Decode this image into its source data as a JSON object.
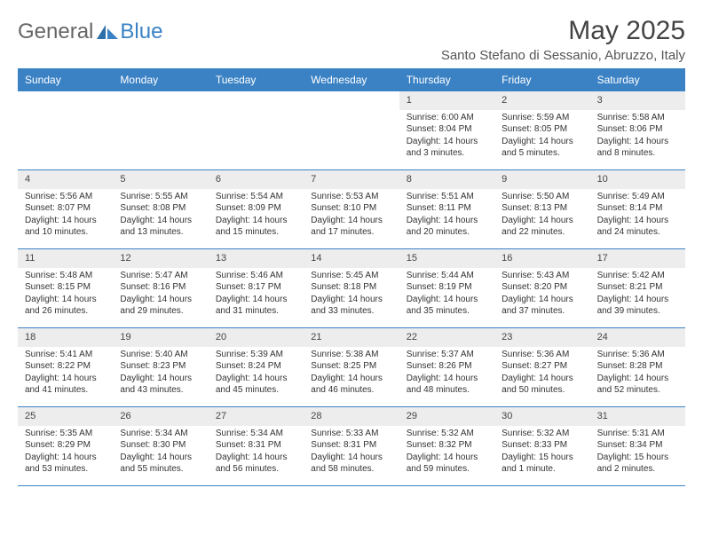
{
  "logo": {
    "text1": "General",
    "text2": "Blue"
  },
  "month_title": "May 2025",
  "location": "Santo Stefano di Sessanio, Abruzzo, Italy",
  "day_names": [
    "Sunday",
    "Monday",
    "Tuesday",
    "Wednesday",
    "Thursday",
    "Friday",
    "Saturday"
  ],
  "colors": {
    "header_bg": "#3b82c4",
    "header_fg": "#ffffff",
    "daynum_bg": "#ededed",
    "week_border": "#3b82c4",
    "text": "#333333"
  },
  "weeks": [
    [
      {
        "n": "",
        "sunrise": "",
        "sunset": "",
        "daylight": ""
      },
      {
        "n": "",
        "sunrise": "",
        "sunset": "",
        "daylight": ""
      },
      {
        "n": "",
        "sunrise": "",
        "sunset": "",
        "daylight": ""
      },
      {
        "n": "",
        "sunrise": "",
        "sunset": "",
        "daylight": ""
      },
      {
        "n": "1",
        "sunrise": "Sunrise: 6:00 AM",
        "sunset": "Sunset: 8:04 PM",
        "daylight": "Daylight: 14 hours and 3 minutes."
      },
      {
        "n": "2",
        "sunrise": "Sunrise: 5:59 AM",
        "sunset": "Sunset: 8:05 PM",
        "daylight": "Daylight: 14 hours and 5 minutes."
      },
      {
        "n": "3",
        "sunrise": "Sunrise: 5:58 AM",
        "sunset": "Sunset: 8:06 PM",
        "daylight": "Daylight: 14 hours and 8 minutes."
      }
    ],
    [
      {
        "n": "4",
        "sunrise": "Sunrise: 5:56 AM",
        "sunset": "Sunset: 8:07 PM",
        "daylight": "Daylight: 14 hours and 10 minutes."
      },
      {
        "n": "5",
        "sunrise": "Sunrise: 5:55 AM",
        "sunset": "Sunset: 8:08 PM",
        "daylight": "Daylight: 14 hours and 13 minutes."
      },
      {
        "n": "6",
        "sunrise": "Sunrise: 5:54 AM",
        "sunset": "Sunset: 8:09 PM",
        "daylight": "Daylight: 14 hours and 15 minutes."
      },
      {
        "n": "7",
        "sunrise": "Sunrise: 5:53 AM",
        "sunset": "Sunset: 8:10 PM",
        "daylight": "Daylight: 14 hours and 17 minutes."
      },
      {
        "n": "8",
        "sunrise": "Sunrise: 5:51 AM",
        "sunset": "Sunset: 8:11 PM",
        "daylight": "Daylight: 14 hours and 20 minutes."
      },
      {
        "n": "9",
        "sunrise": "Sunrise: 5:50 AM",
        "sunset": "Sunset: 8:13 PM",
        "daylight": "Daylight: 14 hours and 22 minutes."
      },
      {
        "n": "10",
        "sunrise": "Sunrise: 5:49 AM",
        "sunset": "Sunset: 8:14 PM",
        "daylight": "Daylight: 14 hours and 24 minutes."
      }
    ],
    [
      {
        "n": "11",
        "sunrise": "Sunrise: 5:48 AM",
        "sunset": "Sunset: 8:15 PM",
        "daylight": "Daylight: 14 hours and 26 minutes."
      },
      {
        "n": "12",
        "sunrise": "Sunrise: 5:47 AM",
        "sunset": "Sunset: 8:16 PM",
        "daylight": "Daylight: 14 hours and 29 minutes."
      },
      {
        "n": "13",
        "sunrise": "Sunrise: 5:46 AM",
        "sunset": "Sunset: 8:17 PM",
        "daylight": "Daylight: 14 hours and 31 minutes."
      },
      {
        "n": "14",
        "sunrise": "Sunrise: 5:45 AM",
        "sunset": "Sunset: 8:18 PM",
        "daylight": "Daylight: 14 hours and 33 minutes."
      },
      {
        "n": "15",
        "sunrise": "Sunrise: 5:44 AM",
        "sunset": "Sunset: 8:19 PM",
        "daylight": "Daylight: 14 hours and 35 minutes."
      },
      {
        "n": "16",
        "sunrise": "Sunrise: 5:43 AM",
        "sunset": "Sunset: 8:20 PM",
        "daylight": "Daylight: 14 hours and 37 minutes."
      },
      {
        "n": "17",
        "sunrise": "Sunrise: 5:42 AM",
        "sunset": "Sunset: 8:21 PM",
        "daylight": "Daylight: 14 hours and 39 minutes."
      }
    ],
    [
      {
        "n": "18",
        "sunrise": "Sunrise: 5:41 AM",
        "sunset": "Sunset: 8:22 PM",
        "daylight": "Daylight: 14 hours and 41 minutes."
      },
      {
        "n": "19",
        "sunrise": "Sunrise: 5:40 AM",
        "sunset": "Sunset: 8:23 PM",
        "daylight": "Daylight: 14 hours and 43 minutes."
      },
      {
        "n": "20",
        "sunrise": "Sunrise: 5:39 AM",
        "sunset": "Sunset: 8:24 PM",
        "daylight": "Daylight: 14 hours and 45 minutes."
      },
      {
        "n": "21",
        "sunrise": "Sunrise: 5:38 AM",
        "sunset": "Sunset: 8:25 PM",
        "daylight": "Daylight: 14 hours and 46 minutes."
      },
      {
        "n": "22",
        "sunrise": "Sunrise: 5:37 AM",
        "sunset": "Sunset: 8:26 PM",
        "daylight": "Daylight: 14 hours and 48 minutes."
      },
      {
        "n": "23",
        "sunrise": "Sunrise: 5:36 AM",
        "sunset": "Sunset: 8:27 PM",
        "daylight": "Daylight: 14 hours and 50 minutes."
      },
      {
        "n": "24",
        "sunrise": "Sunrise: 5:36 AM",
        "sunset": "Sunset: 8:28 PM",
        "daylight": "Daylight: 14 hours and 52 minutes."
      }
    ],
    [
      {
        "n": "25",
        "sunrise": "Sunrise: 5:35 AM",
        "sunset": "Sunset: 8:29 PM",
        "daylight": "Daylight: 14 hours and 53 minutes."
      },
      {
        "n": "26",
        "sunrise": "Sunrise: 5:34 AM",
        "sunset": "Sunset: 8:30 PM",
        "daylight": "Daylight: 14 hours and 55 minutes."
      },
      {
        "n": "27",
        "sunrise": "Sunrise: 5:34 AM",
        "sunset": "Sunset: 8:31 PM",
        "daylight": "Daylight: 14 hours and 56 minutes."
      },
      {
        "n": "28",
        "sunrise": "Sunrise: 5:33 AM",
        "sunset": "Sunset: 8:31 PM",
        "daylight": "Daylight: 14 hours and 58 minutes."
      },
      {
        "n": "29",
        "sunrise": "Sunrise: 5:32 AM",
        "sunset": "Sunset: 8:32 PM",
        "daylight": "Daylight: 14 hours and 59 minutes."
      },
      {
        "n": "30",
        "sunrise": "Sunrise: 5:32 AM",
        "sunset": "Sunset: 8:33 PM",
        "daylight": "Daylight: 15 hours and 1 minute."
      },
      {
        "n": "31",
        "sunrise": "Sunrise: 5:31 AM",
        "sunset": "Sunset: 8:34 PM",
        "daylight": "Daylight: 15 hours and 2 minutes."
      }
    ]
  ]
}
